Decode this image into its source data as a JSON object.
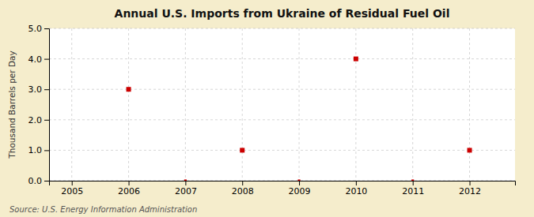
{
  "chart_data": {
    "type": "scatter",
    "title": "Annual U.S. Imports from Ukraine of Residual Fuel Oil",
    "y_label": "Thousand Barrels per Day",
    "source": "Source: U.S. Energy Information Administration",
    "x": [
      2006,
      2007,
      2008,
      2009,
      2010,
      2011,
      2012
    ],
    "values": [
      3.0,
      0.0,
      1.0,
      0.0,
      4.0,
      0.0,
      1.0
    ],
    "color": "#CC0000",
    "marker": "square",
    "xlim": [
      2004.6,
      2012.8
    ],
    "ylim": [
      0.0,
      5.0
    ],
    "xticks": [
      2005,
      2006,
      2007,
      2008,
      2009,
      2010,
      2011,
      2012
    ],
    "yticks": [
      {
        "value": 0.0,
        "label": "0.0"
      },
      {
        "value": 1.0,
        "label": "1.0"
      },
      {
        "value": 2.0,
        "label": "2.0"
      },
      {
        "value": 3.0,
        "label": "3.0"
      },
      {
        "value": 4.0,
        "label": "4.0"
      },
      {
        "value": 5.0,
        "label": "5.0"
      }
    ],
    "grid": true
  }
}
